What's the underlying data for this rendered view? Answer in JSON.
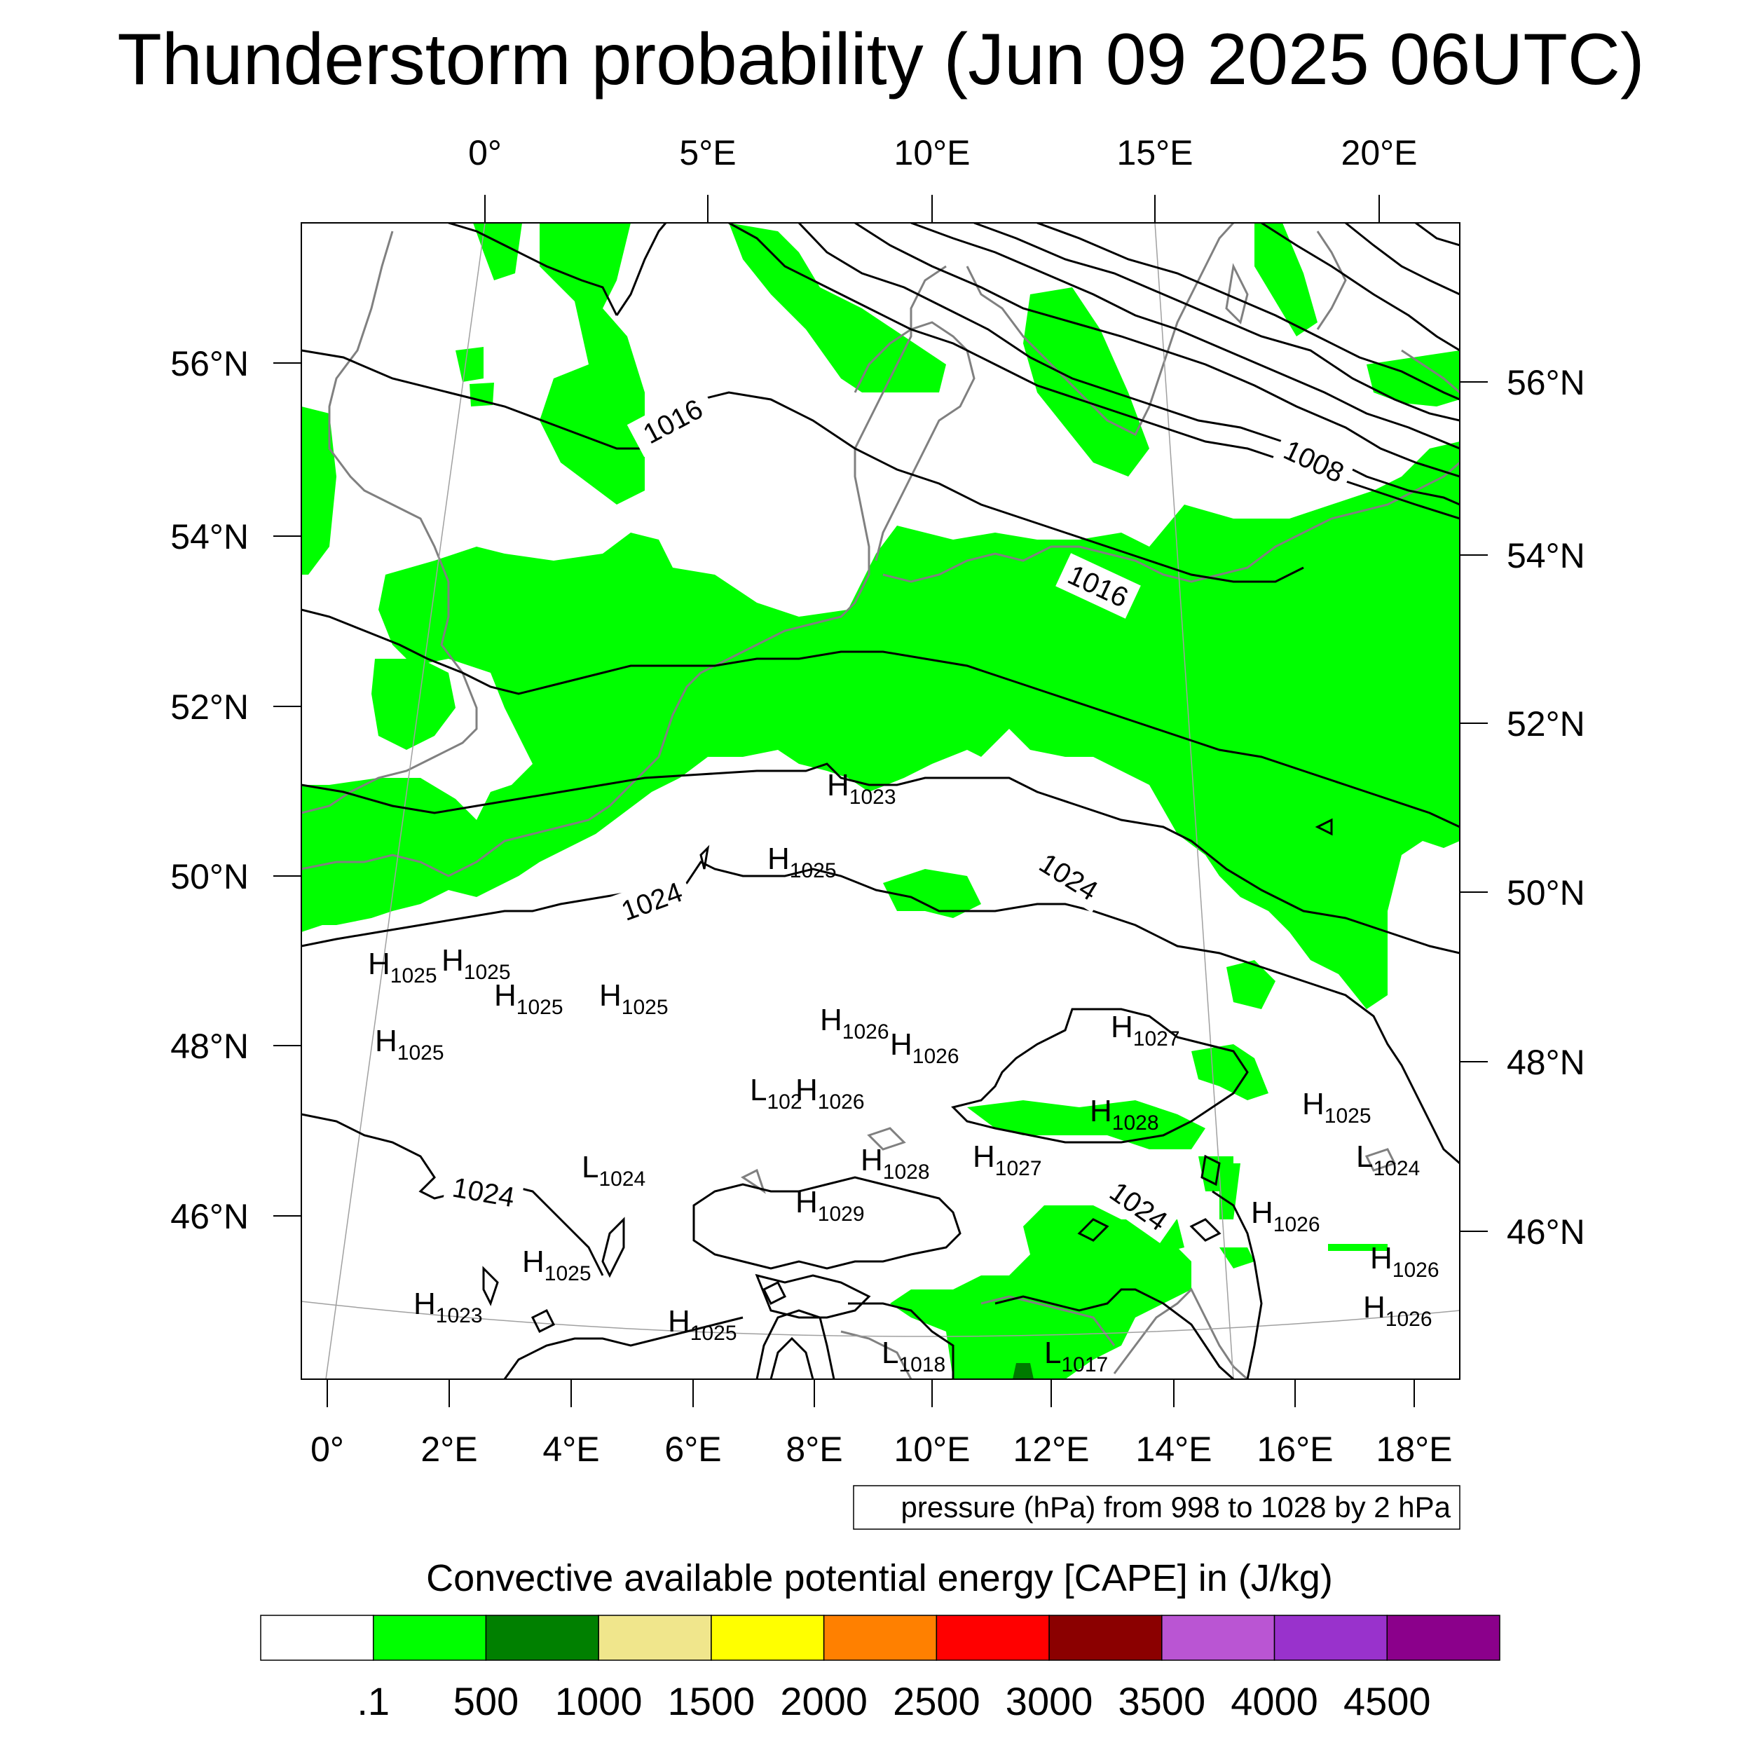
{
  "title": "Thunderstorm probability (Jun 09 2025 06UTC)",
  "map": {
    "top_lon_ticks": [
      "0°",
      "5°E",
      "10°E",
      "15°E",
      "20°E"
    ],
    "bottom_lon_ticks": [
      "0°",
      "2°E",
      "4°E",
      "6°E",
      "8°E",
      "10°E",
      "12°E",
      "14°E",
      "16°E",
      "18°E"
    ],
    "left_lat_ticks": [
      "56°N",
      "54°N",
      "52°N",
      "50°N",
      "48°N",
      "46°N"
    ],
    "right_lat_ticks": [
      "56°N",
      "54°N",
      "52°N",
      "50°N",
      "48°N",
      "46°N"
    ],
    "cape_fill_color": "#00ff00",
    "cape_dark_color": "#007a00",
    "coastline_color": "#808080",
    "isobar_color": "#000000"
  },
  "isobar_labels": [
    "1016",
    "1008",
    "1016",
    "1024",
    "1024",
    "1024",
    "1024"
  ],
  "pressure_centers": [
    {
      "letter": "H",
      "value": "1023"
    },
    {
      "letter": "H",
      "value": "1025"
    },
    {
      "letter": "H",
      "value": "1025"
    },
    {
      "letter": "H",
      "value": "1025"
    },
    {
      "letter": "H",
      "value": "1025"
    },
    {
      "letter": "H",
      "value": "1025"
    },
    {
      "letter": "H",
      "value": "1025"
    },
    {
      "letter": "H",
      "value": "1026"
    },
    {
      "letter": "H",
      "value": "1026"
    },
    {
      "letter": "H",
      "value": "1027"
    },
    {
      "letter": "L",
      "value": "102"
    },
    {
      "letter": "H",
      "value": "1026"
    },
    {
      "letter": "H",
      "value": "1028"
    },
    {
      "letter": "H",
      "value": "1025"
    },
    {
      "letter": "L",
      "value": "1024"
    },
    {
      "letter": "H",
      "value": "1027"
    },
    {
      "letter": "H",
      "value": "1028"
    },
    {
      "letter": "L",
      "value": "1024"
    },
    {
      "letter": "H",
      "value": "1029"
    },
    {
      "letter": "H",
      "value": "1026"
    },
    {
      "letter": "H",
      "value": "1025"
    },
    {
      "letter": "H",
      "value": "1026"
    },
    {
      "letter": "H",
      "value": "1023"
    },
    {
      "letter": "H",
      "value": "1026"
    },
    {
      "letter": "H",
      "value": "1025"
    },
    {
      "letter": "L",
      "value": "1018"
    },
    {
      "letter": "L",
      "value": "1017"
    }
  ],
  "contour_note": "pressure (hPa) from 998 to 1028 by 2 hPa",
  "colorbar": {
    "title": "Convective available potential energy [CAPE] in (J/kg)",
    "colors": [
      "#ffffff",
      "#00ff00",
      "#008000",
      "#f0e68c",
      "#ffff00",
      "#ff8000",
      "#ff0000",
      "#8b0000",
      "#ba55d3",
      "#9932cc",
      "#8b008b"
    ],
    "tick_labels": [
      ".1",
      "500",
      "1000",
      "1500",
      "2000",
      "2500",
      "3000",
      "3500",
      "4000",
      "4500"
    ]
  }
}
